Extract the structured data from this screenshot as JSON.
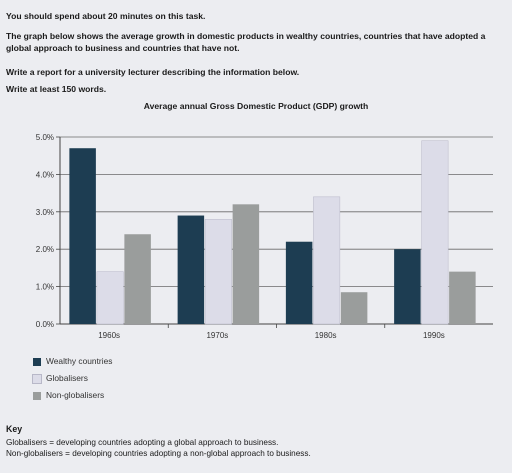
{
  "task": {
    "line1": "You should spend about 20 minutes on this task.",
    "line2": "The graph below shows the average growth in domestic products in wealthy countries, countries that have adopted a global approach to business and countries that have not.",
    "line3": "Write a report for a university lecturer describing the information below.",
    "line4": "Write at least 150 words."
  },
  "chart_data": {
    "type": "bar",
    "title": "Average annual Gross Domestic Product (GDP) growth",
    "categories": [
      "1960s",
      "1970s",
      "1980s",
      "1990s"
    ],
    "series": [
      {
        "name": "Wealthy countries",
        "color": "#1d3d52",
        "values": [
          4.7,
          2.9,
          2.2,
          2.0
        ]
      },
      {
        "name": "Globalisers",
        "color": "#dcdce8",
        "values": [
          1.4,
          2.8,
          3.4,
          4.9
        ]
      },
      {
        "name": "Non-globalisers",
        "color": "#9a9d9c",
        "values": [
          2.4,
          3.2,
          0.85,
          1.4
        ]
      }
    ],
    "yticks": [
      "0.0%",
      "1.0%",
      "2.0%",
      "3.0%",
      "4.0%",
      "5.0%"
    ],
    "ylim": [
      0,
      5
    ],
    "grid": true,
    "legend_position": "bottom-left"
  },
  "key": {
    "title": "Key",
    "line1": "Globalisers = developing countries adopting a global approach to business.",
    "line2": "Non-globalisers = developing countries adopting a non-global approach to business."
  }
}
